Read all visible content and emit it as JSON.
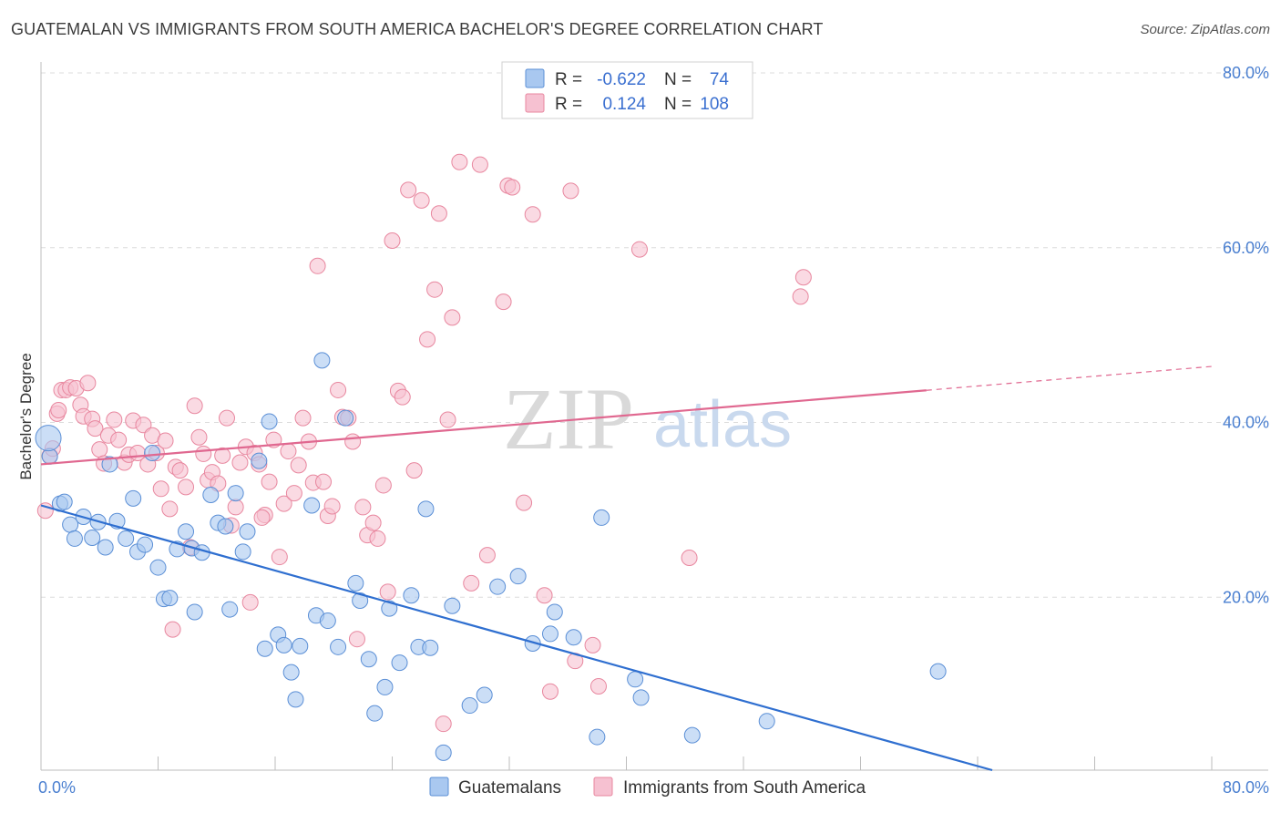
{
  "title": "GUATEMALAN VS IMMIGRANTS FROM SOUTH AMERICA BACHELOR'S DEGREE CORRELATION CHART",
  "source": "Source: ZipAtlas.com",
  "watermark": {
    "zip": "ZIP",
    "atlas": "atlas"
  },
  "legend": {
    "r_label": "R =",
    "n_label": "N =",
    "rows": [
      {
        "r": "-0.622",
        "n": "74",
        "color": "#7aa7e6"
      },
      {
        "r": "0.124",
        "n": "108",
        "color": "#f0a0ba"
      }
    ]
  },
  "colors": {
    "blue_fill": "#a9c8f0",
    "blue_stroke": "#5b8fd6",
    "blue_line": "#2f6fd0",
    "pink_fill": "#f6c1d1",
    "pink_stroke": "#e8879f",
    "pink_line": "#e06890",
    "grid": "#dcdcdc",
    "tick_text": "#4a7fd0"
  },
  "chart_data": {
    "type": "scatter",
    "title": "GUATEMALAN VS IMMIGRANTS FROM SOUTH AMERICA BACHELOR'S DEGREE CORRELATION CHART",
    "xlabel": "",
    "ylabel": "Bachelor's Degree",
    "xlim": [
      0,
      80
    ],
    "ylim": [
      0,
      80
    ],
    "x_tick_labels": [
      "0.0%",
      "80.0%"
    ],
    "y_tick_labels": [
      "20.0%",
      "40.0%",
      "60.0%",
      "80.0%"
    ],
    "y_ticks": [
      20,
      40,
      60,
      80
    ],
    "grid": true,
    "legend_position": "top-center",
    "series": [
      {
        "name": "Guatemalans",
        "color": "#7aa7e6",
        "trend": {
          "x": [
            0,
            65
          ],
          "y": [
            30.3,
            0
          ]
        },
        "points": [
          [
            0.6,
            35.9
          ],
          [
            1.3,
            30.5
          ],
          [
            1.6,
            30.7
          ],
          [
            2.0,
            28.1
          ],
          [
            2.3,
            26.5
          ],
          [
            2.9,
            29.0
          ],
          [
            3.5,
            26.6
          ],
          [
            3.9,
            28.4
          ],
          [
            4.4,
            25.5
          ],
          [
            4.7,
            35.0
          ],
          [
            5.2,
            28.5
          ],
          [
            5.8,
            26.5
          ],
          [
            6.3,
            31.1
          ],
          [
            6.6,
            25.0
          ],
          [
            7.1,
            25.8
          ],
          [
            7.6,
            36.3
          ],
          [
            8.0,
            23.2
          ],
          [
            8.4,
            19.6
          ],
          [
            8.8,
            19.7
          ],
          [
            9.3,
            25.3
          ],
          [
            9.9,
            27.3
          ],
          [
            10.3,
            25.4
          ],
          [
            10.5,
            18.1
          ],
          [
            11.0,
            24.9
          ],
          [
            11.6,
            31.5
          ],
          [
            12.1,
            28.3
          ],
          [
            12.6,
            27.9
          ],
          [
            12.9,
            18.4
          ],
          [
            13.3,
            31.7
          ],
          [
            13.8,
            25.0
          ],
          [
            14.1,
            27.3
          ],
          [
            14.9,
            35.4
          ],
          [
            15.3,
            13.9
          ],
          [
            15.6,
            39.9
          ],
          [
            16.2,
            15.5
          ],
          [
            16.6,
            14.3
          ],
          [
            17.1,
            11.2
          ],
          [
            17.4,
            8.1
          ],
          [
            17.7,
            14.2
          ],
          [
            18.5,
            30.3
          ],
          [
            18.8,
            17.7
          ],
          [
            19.2,
            46.9
          ],
          [
            19.6,
            17.1
          ],
          [
            20.3,
            14.1
          ],
          [
            20.8,
            40.3
          ],
          [
            21.5,
            21.4
          ],
          [
            21.8,
            19.4
          ],
          [
            22.4,
            12.7
          ],
          [
            22.8,
            6.5
          ],
          [
            23.5,
            9.5
          ],
          [
            23.8,
            18.5
          ],
          [
            24.5,
            12.3
          ],
          [
            25.3,
            20.0
          ],
          [
            25.8,
            14.1
          ],
          [
            26.3,
            29.9
          ],
          [
            26.6,
            14.0
          ],
          [
            27.5,
            2.0
          ],
          [
            28.1,
            18.8
          ],
          [
            29.3,
            7.4
          ],
          [
            30.3,
            8.6
          ],
          [
            31.2,
            21.0
          ],
          [
            32.6,
            22.2
          ],
          [
            33.6,
            14.5
          ],
          [
            34.8,
            15.6
          ],
          [
            35.1,
            18.1
          ],
          [
            36.4,
            15.2
          ],
          [
            38.0,
            3.8
          ],
          [
            38.3,
            28.9
          ],
          [
            40.6,
            10.4
          ],
          [
            41.0,
            8.3
          ],
          [
            44.5,
            4.0
          ],
          [
            49.6,
            5.6
          ],
          [
            61.3,
            11.3
          ],
          [
            0.5,
            38.0
          ]
        ]
      },
      {
        "name": "Immigrants from South America",
        "color": "#f0a0ba",
        "trend": {
          "x": [
            0,
            80
          ],
          "y": [
            35.0,
            46.2
          ]
        },
        "points": [
          [
            0.3,
            29.7
          ],
          [
            0.6,
            36.0
          ],
          [
            1.1,
            40.8
          ],
          [
            1.4,
            43.5
          ],
          [
            1.7,
            43.5
          ],
          [
            2.0,
            43.8
          ],
          [
            2.4,
            43.7
          ],
          [
            2.7,
            41.8
          ],
          [
            2.9,
            40.5
          ],
          [
            3.2,
            44.3
          ],
          [
            3.5,
            40.2
          ],
          [
            3.7,
            39.1
          ],
          [
            4.0,
            36.7
          ],
          [
            4.3,
            35.1
          ],
          [
            4.6,
            38.3
          ],
          [
            5.0,
            40.1
          ],
          [
            5.3,
            37.8
          ],
          [
            5.7,
            35.2
          ],
          [
            6.0,
            36.1
          ],
          [
            6.3,
            40.0
          ],
          [
            6.6,
            36.3
          ],
          [
            7.0,
            39.5
          ],
          [
            7.3,
            35.0
          ],
          [
            7.6,
            38.3
          ],
          [
            7.9,
            36.3
          ],
          [
            8.2,
            32.2
          ],
          [
            8.5,
            37.7
          ],
          [
            8.8,
            29.9
          ],
          [
            9.2,
            34.7
          ],
          [
            9.5,
            34.3
          ],
          [
            9.9,
            32.4
          ],
          [
            10.2,
            25.5
          ],
          [
            10.5,
            41.7
          ],
          [
            10.8,
            38.1
          ],
          [
            11.1,
            36.2
          ],
          [
            11.4,
            33.2
          ],
          [
            11.7,
            34.1
          ],
          [
            12.1,
            32.8
          ],
          [
            12.4,
            36.0
          ],
          [
            12.7,
            40.3
          ],
          [
            13.0,
            28.0
          ],
          [
            13.3,
            30.1
          ],
          [
            13.6,
            35.2
          ],
          [
            14.0,
            37.0
          ],
          [
            14.3,
            19.2
          ],
          [
            14.6,
            36.3
          ],
          [
            14.9,
            35.0
          ],
          [
            15.3,
            29.2
          ],
          [
            15.6,
            33.0
          ],
          [
            15.9,
            37.8
          ],
          [
            16.3,
            24.4
          ],
          [
            16.6,
            30.5
          ],
          [
            16.9,
            36.5
          ],
          [
            17.3,
            31.7
          ],
          [
            17.6,
            34.9
          ],
          [
            17.9,
            40.3
          ],
          [
            18.3,
            37.6
          ],
          [
            18.6,
            32.9
          ],
          [
            18.9,
            57.7
          ],
          [
            19.3,
            33.0
          ],
          [
            19.6,
            29.1
          ],
          [
            19.9,
            30.2
          ],
          [
            20.3,
            43.5
          ],
          [
            20.6,
            40.4
          ],
          [
            21.0,
            40.3
          ],
          [
            21.3,
            37.6
          ],
          [
            21.6,
            15.0
          ],
          [
            22.0,
            30.1
          ],
          [
            22.3,
            26.9
          ],
          [
            22.7,
            28.3
          ],
          [
            23.0,
            26.5
          ],
          [
            23.4,
            32.6
          ],
          [
            23.7,
            20.4
          ],
          [
            24.0,
            60.6
          ],
          [
            24.4,
            43.4
          ],
          [
            24.7,
            42.7
          ],
          [
            25.1,
            66.4
          ],
          [
            25.5,
            34.3
          ],
          [
            26.0,
            65.2
          ],
          [
            26.4,
            49.3
          ],
          [
            26.9,
            55.0
          ],
          [
            27.2,
            63.7
          ],
          [
            27.5,
            5.3
          ],
          [
            27.8,
            40.1
          ],
          [
            28.1,
            51.8
          ],
          [
            28.6,
            69.6
          ],
          [
            29.4,
            21.4
          ],
          [
            30.0,
            69.3
          ],
          [
            30.5,
            24.6
          ],
          [
            31.6,
            53.6
          ],
          [
            31.9,
            66.9
          ],
          [
            32.2,
            66.7
          ],
          [
            33.0,
            30.6
          ],
          [
            33.6,
            63.6
          ],
          [
            34.4,
            20.0
          ],
          [
            34.8,
            9.0
          ],
          [
            36.2,
            66.3
          ],
          [
            36.5,
            12.5
          ],
          [
            37.7,
            14.3
          ],
          [
            38.1,
            9.6
          ],
          [
            40.9,
            59.6
          ],
          [
            44.3,
            24.3
          ],
          [
            51.9,
            54.2
          ],
          [
            52.1,
            56.4
          ],
          [
            0.8,
            36.8
          ],
          [
            1.2,
            41.2
          ],
          [
            9.0,
            16.1
          ],
          [
            15.1,
            28.9
          ]
        ]
      }
    ]
  },
  "bottom_legend": [
    "Guatemalans",
    "Immigrants from South America"
  ]
}
